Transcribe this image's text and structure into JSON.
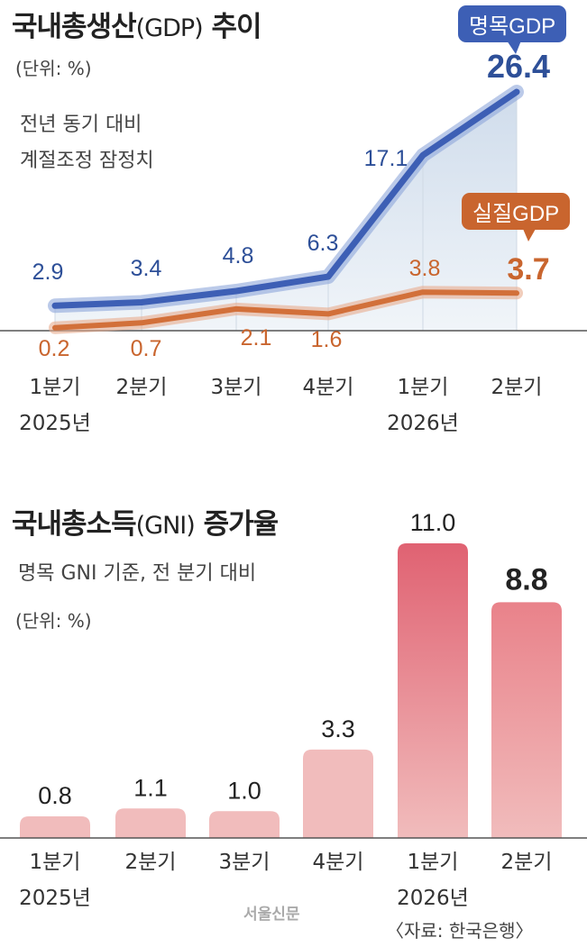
{
  "gdp_chart": {
    "title_main": "국내총생산",
    "title_paren": "(GDP)",
    "title_tail": "추이",
    "unit": "(단위: %)",
    "subtitle_line1": "전년 동기 대비",
    "subtitle_line2": "계절조정 잠정치"
  },
  "gni_chart": {
    "title_main": "국내총소득",
    "title_paren": "(GNI)",
    "title_tail": "증가율",
    "subtitle": "명목 GNI 기준, 전 분기 대비",
    "unit": "(단위: %)"
  },
  "footer": {
    "logo": "서울신문",
    "source": "〈자료: 한국은행〉"
  },
  "colors": {
    "nominal": "#3d5fb5",
    "nominal_label": "#2d4f98",
    "real": "#d2703a",
    "real_label": "#c9652e",
    "bar_top": "#e06272",
    "bar_light": "#f1bcbc"
  },
  "chart_data": [
    {
      "type": "line",
      "categories": [
        "1분기\n2025년",
        "2분기",
        "3분기",
        "4분기",
        "1분기\n2026년",
        "2분기"
      ],
      "series": [
        {
          "name": "명목GDP",
          "values": [
            2.9,
            3.4,
            4.8,
            6.3,
            17.1,
            26.4
          ]
        },
        {
          "name": "실질GDP",
          "values": [
            0.2,
            0.7,
            2.1,
            1.6,
            3.8,
            3.7
          ]
        }
      ],
      "value_labels": {
        "명목GDP": [
          "2.9",
          "3.4",
          "4.8",
          "6.3",
          "17.1",
          "26.4"
        ],
        "실질GDP": [
          "0.2",
          "0.7",
          "2.1",
          "1.6",
          "3.8",
          "3.7"
        ]
      },
      "grid": false
    },
    {
      "type": "bar",
      "categories": [
        "1분기\n2025년",
        "2분기",
        "3분기",
        "4분기",
        "1분기\n2026년",
        "2분기"
      ],
      "values": [
        0.8,
        1.1,
        1.0,
        3.3,
        11.0,
        8.8
      ],
      "value_labels": [
        "0.8",
        "1.1",
        "1.0",
        "3.3",
        "11.0",
        "8.8"
      ],
      "ylim": [
        0,
        11.0
      ]
    }
  ]
}
